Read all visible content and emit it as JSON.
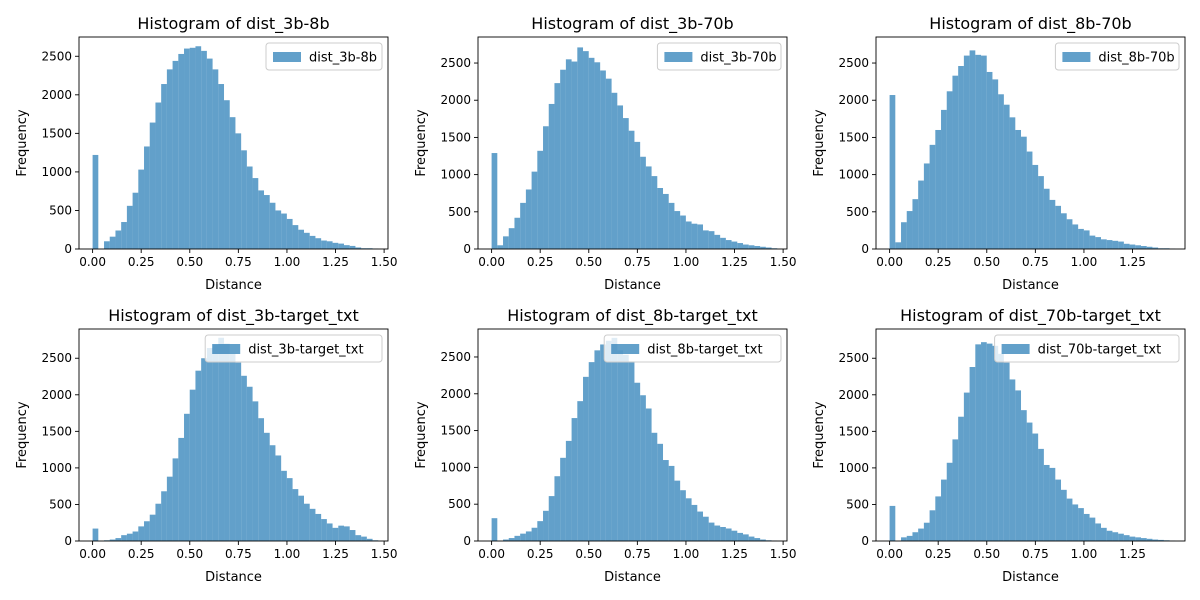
{
  "figure": {
    "background": "#ffffff"
  },
  "chart_data": [
    {
      "type": "bar",
      "title": "Histogram of dist_3b-8b",
      "xlabel": "Distance",
      "ylabel": "Frequency",
      "xlim": [
        -0.07,
        1.52
      ],
      "ylim": [
        0,
        2750
      ],
      "xticks": [
        0.0,
        0.25,
        0.5,
        0.75,
        1.0,
        1.25,
        1.5
      ],
      "xtick_labels": [
        "0.00",
        "0.25",
        "0.50",
        "0.75",
        "1.00",
        "1.25",
        "1.50"
      ],
      "yticks": [
        0,
        500,
        1000,
        1500,
        2000,
        2500
      ],
      "ytick_labels": [
        "0",
        "500",
        "1000",
        "1500",
        "2000",
        "2500"
      ],
      "legend": {
        "label": "dist_3b-8b",
        "position": "top-right"
      },
      "color": "#1f77b4",
      "bin_start": 0.0,
      "bin_width": 0.0294,
      "series": [
        {
          "name": "dist_3b-8b",
          "values": [
            1220,
            0,
            100,
            160,
            240,
            350,
            560,
            730,
            1030,
            1330,
            1640,
            1900,
            2140,
            2330,
            2440,
            2530,
            2600,
            2610,
            2630,
            2570,
            2470,
            2330,
            2140,
            1930,
            1710,
            1500,
            1280,
            1070,
            920,
            760,
            700,
            600,
            500,
            460,
            390,
            310,
            250,
            210,
            170,
            140,
            110,
            100,
            80,
            70,
            50,
            40,
            20,
            10,
            10,
            5
          ]
        }
      ]
    },
    {
      "type": "bar",
      "title": "Histogram of dist_3b-70b",
      "xlabel": "Distance",
      "ylabel": "Frequency",
      "xlim": [
        -0.07,
        1.52
      ],
      "ylim": [
        0,
        2850
      ],
      "xticks": [
        0.0,
        0.25,
        0.5,
        0.75,
        1.0,
        1.25,
        1.5
      ],
      "xtick_labels": [
        "0.00",
        "0.25",
        "0.50",
        "0.75",
        "1.00",
        "1.25",
        "1.50"
      ],
      "yticks": [
        0,
        500,
        1000,
        1500,
        2000,
        2500
      ],
      "ytick_labels": [
        "0",
        "500",
        "1000",
        "1500",
        "2000",
        "2500"
      ],
      "legend": {
        "label": "dist_3b-70b",
        "position": "top-right"
      },
      "color": "#1f77b4",
      "bin_start": 0.0,
      "bin_width": 0.0294,
      "series": [
        {
          "name": "dist_3b-70b",
          "values": [
            1290,
            50,
            170,
            280,
            420,
            620,
            800,
            1040,
            1320,
            1650,
            1950,
            2230,
            2410,
            2550,
            2520,
            2710,
            2660,
            2570,
            2510,
            2400,
            2290,
            2100,
            1930,
            1760,
            1590,
            1440,
            1240,
            1110,
            980,
            820,
            740,
            620,
            510,
            450,
            370,
            340,
            330,
            250,
            240,
            190,
            150,
            120,
            100,
            80,
            60,
            50,
            40,
            30,
            20,
            10
          ]
        }
      ]
    },
    {
      "type": "bar",
      "title": "Histogram of dist_8b-70b",
      "xlabel": "Distance",
      "ylabel": "Frequency",
      "xlim": [
        -0.07,
        1.52
      ],
      "ylim": [
        0,
        2850
      ],
      "xticks": [
        0.0,
        0.25,
        0.5,
        0.75,
        1.0,
        1.25
      ],
      "xtick_labels": [
        "0.00",
        "0.25",
        "0.50",
        "0.75",
        "1.00",
        "1.25"
      ],
      "yticks": [
        0,
        500,
        1000,
        1500,
        2000,
        2500
      ],
      "ytick_labels": [
        "0",
        "500",
        "1000",
        "1500",
        "2000",
        "2500"
      ],
      "legend": {
        "label": "dist_8b-70b",
        "position": "top-right"
      },
      "color": "#1f77b4",
      "bin_start": 0.0,
      "bin_width": 0.0294,
      "series": [
        {
          "name": "dist_8b-70b",
          "values": [
            2070,
            90,
            360,
            510,
            670,
            920,
            1150,
            1400,
            1600,
            1870,
            2120,
            2330,
            2460,
            2600,
            2670,
            2610,
            2600,
            2380,
            2280,
            2080,
            1940,
            1770,
            1600,
            1510,
            1310,
            1130,
            980,
            810,
            660,
            580,
            480,
            400,
            330,
            270,
            250,
            180,
            160,
            130,
            120,
            110,
            100,
            70,
            60,
            50,
            40,
            30,
            20,
            10,
            10,
            5
          ]
        }
      ]
    },
    {
      "type": "bar",
      "title": "Histogram of dist_3b-target_txt",
      "xlabel": "Distance",
      "ylabel": "Frequency",
      "xlim": [
        -0.07,
        1.52
      ],
      "ylim": [
        0,
        2900
      ],
      "xticks": [
        0.0,
        0.25,
        0.5,
        0.75,
        1.0,
        1.25,
        1.5
      ],
      "xtick_labels": [
        "0.00",
        "0.25",
        "0.50",
        "0.75",
        "1.00",
        "1.25",
        "1.50"
      ],
      "yticks": [
        0,
        500,
        1000,
        1500,
        2000,
        2500
      ],
      "ytick_labels": [
        "0",
        "500",
        "1000",
        "1500",
        "2000",
        "2500"
      ],
      "legend": {
        "label": "dist_3b-target_txt",
        "position": "top-right"
      },
      "color": "#1f77b4",
      "bin_start": 0.0,
      "bin_width": 0.0294,
      "series": [
        {
          "name": "dist_3b-target_txt",
          "values": [
            170,
            0,
            10,
            20,
            40,
            80,
            100,
            130,
            200,
            270,
            360,
            510,
            680,
            880,
            1130,
            1410,
            1740,
            2070,
            2330,
            2500,
            2640,
            2680,
            2780,
            2700,
            2560,
            2440,
            2260,
            2110,
            1910,
            1680,
            1480,
            1310,
            1170,
            960,
            860,
            710,
            620,
            510,
            440,
            370,
            300,
            240,
            180,
            210,
            200,
            150,
            80,
            60,
            30,
            10
          ]
        }
      ]
    },
    {
      "type": "bar",
      "title": "Histogram of dist_8b-target_txt",
      "xlabel": "Distance",
      "ylabel": "Frequency",
      "xlim": [
        -0.07,
        1.52
      ],
      "ylim": [
        0,
        2880
      ],
      "xticks": [
        0.0,
        0.25,
        0.5,
        0.75,
        1.0,
        1.25,
        1.5
      ],
      "xtick_labels": [
        "0.00",
        "0.25",
        "0.50",
        "0.75",
        "1.00",
        "1.25",
        "1.50"
      ],
      "yticks": [
        0,
        500,
        1000,
        1500,
        2000,
        2500
      ],
      "ytick_labels": [
        "0",
        "500",
        "1000",
        "1500",
        "2000",
        "2500"
      ],
      "legend": {
        "label": "dist_8b-target_txt",
        "position": "top-right"
      },
      "color": "#1f77b4",
      "bin_start": 0.0,
      "bin_width": 0.0294,
      "series": [
        {
          "name": "dist_8b-target_txt",
          "values": [
            310,
            0,
            20,
            40,
            70,
            100,
            130,
            180,
            270,
            410,
            610,
            880,
            1130,
            1360,
            1670,
            1900,
            2230,
            2430,
            2590,
            2670,
            2720,
            2760,
            2590,
            2530,
            2440,
            2150,
            1980,
            1800,
            1470,
            1320,
            1100,
            1020,
            820,
            690,
            580,
            490,
            400,
            330,
            250,
            210,
            190,
            170,
            140,
            110,
            90,
            60,
            40,
            20,
            10,
            5
          ]
        }
      ]
    },
    {
      "type": "bar",
      "title": "Histogram of dist_70b-target_txt",
      "xlabel": "Distance",
      "ylabel": "Frequency",
      "xlim": [
        -0.07,
        1.52
      ],
      "ylim": [
        0,
        2900
      ],
      "xticks": [
        0.0,
        0.25,
        0.5,
        0.75,
        1.0,
        1.25
      ],
      "xtick_labels": [
        "0.00",
        "0.25",
        "0.50",
        "0.75",
        "1.00",
        "1.25"
      ],
      "yticks": [
        0,
        500,
        1000,
        1500,
        2000,
        2500
      ],
      "ytick_labels": [
        "0",
        "500",
        "1000",
        "1500",
        "2000",
        "2500"
      ],
      "legend": {
        "label": "dist_70b-target_txt",
        "position": "top-right"
      },
      "color": "#1f77b4",
      "bin_start": 0.0,
      "bin_width": 0.0294,
      "series": [
        {
          "name": "dist_70b-target_txt",
          "values": [
            480,
            0,
            50,
            70,
            120,
            170,
            250,
            420,
            610,
            840,
            1070,
            1390,
            1700,
            2030,
            2380,
            2690,
            2720,
            2700,
            2670,
            2560,
            2440,
            2210,
            2060,
            1790,
            1620,
            1470,
            1260,
            1040,
            1000,
            840,
            700,
            580,
            500,
            450,
            370,
            320,
            240,
            180,
            140,
            120,
            100,
            80,
            60,
            50,
            40,
            30,
            20,
            15,
            10,
            5
          ]
        }
      ]
    }
  ]
}
